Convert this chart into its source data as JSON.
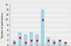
{
  "categories": [
    "Op1",
    "Op2",
    "Op3",
    "Op4",
    "Op5",
    "Op6",
    "Op7",
    "Op8",
    "Op9",
    "Op10"
  ],
  "bar_values": [
    2,
    5,
    4,
    5,
    4,
    14,
    3,
    2,
    2,
    1
  ],
  "diamond_values": [
    1,
    3,
    1,
    2,
    2,
    10,
    2,
    1,
    2,
    1
  ],
  "bar_color": "#a8d4e8",
  "diamond_color": "#e8001c",
  "bar_edge_color": "#7ab8d4",
  "ylim": [
    0,
    16
  ],
  "yticks": [
    0,
    2,
    4,
    6,
    8,
    10,
    12,
    14,
    16
  ],
  "ylabel": "Number of workstations",
  "background_color": "#ebebeb",
  "grid_color": "#ffffff"
}
